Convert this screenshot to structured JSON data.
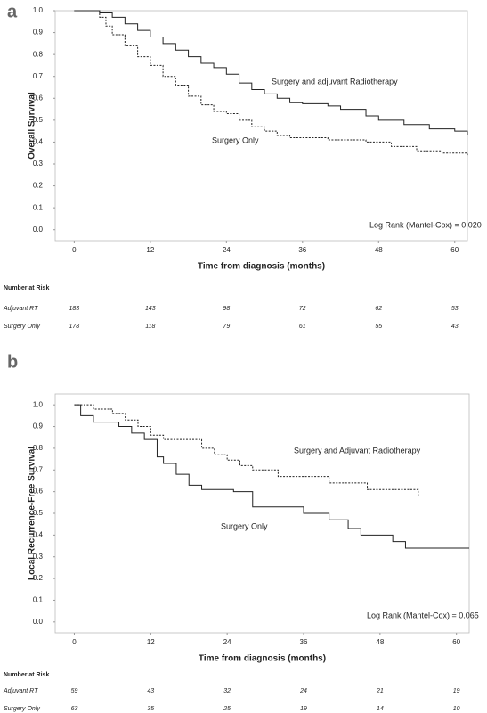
{
  "chart_data": [
    {
      "type": "line",
      "panel_label": "a",
      "ylabel": "Overall Survival",
      "xlabel": "Time from diagnosis (months)",
      "xlim": [
        -3,
        62
      ],
      "ylim": [
        -0.05,
        1.0
      ],
      "xticks": [
        0,
        12,
        24,
        36,
        48,
        60
      ],
      "yticks": [
        {
          "value": 0,
          "label": "0.0"
        },
        0.1,
        0.2,
        0.3,
        0.4,
        0.5,
        0.6,
        0.7,
        0.8,
        0.9,
        {
          "value": 1,
          "label": "1.0"
        }
      ],
      "series": [
        {
          "name": "Surgery and adjuvant Radiotherapy",
          "color": "#222",
          "line_style": "solid",
          "x": [
            0,
            2,
            4,
            6,
            8,
            10,
            12,
            14,
            16,
            18,
            20,
            22,
            24,
            26,
            28,
            30,
            32,
            34,
            36,
            40,
            42,
            46,
            48,
            52,
            56,
            60,
            62
          ],
          "values": [
            1,
            1,
            0.99,
            0.97,
            0.94,
            0.91,
            0.88,
            0.85,
            0.82,
            0.79,
            0.76,
            0.74,
            0.71,
            0.67,
            0.64,
            0.62,
            0.6,
            0.58,
            0.575,
            0.565,
            0.55,
            0.52,
            0.5,
            0.48,
            0.46,
            0.45,
            0.43
          ]
        },
        {
          "name": "Surgery Only",
          "color": "#222",
          "line_style": "dashed",
          "x": [
            0,
            2,
            4,
            5,
            6,
            8,
            10,
            12,
            14,
            16,
            18,
            20,
            22,
            24,
            26,
            28,
            30,
            32,
            34,
            40,
            46,
            50,
            54,
            58,
            62
          ],
          "values": [
            1,
            1,
            0.97,
            0.93,
            0.89,
            0.84,
            0.79,
            0.75,
            0.7,
            0.66,
            0.61,
            0.57,
            0.54,
            0.53,
            0.5,
            0.47,
            0.45,
            0.43,
            0.42,
            0.41,
            0.4,
            0.38,
            0.36,
            0.35,
            0.34
          ]
        }
      ],
      "annotations": [
        "Surgery and adjuvant Radiotherapy",
        "Surgery Only",
        "Log Rank (Mantel-Cox) = 0.020"
      ],
      "risk_table": {
        "title": "Number at Risk",
        "rows": [
          {
            "label": "Adjuvant RT",
            "values": [
              183,
              143,
              98,
              72,
              62,
              53
            ]
          },
          {
            "label": "Surgery Only",
            "values": [
              178,
              118,
              79,
              61,
              55,
              43
            ]
          }
        ]
      }
    },
    {
      "type": "line",
      "panel_label": "b",
      "ylabel": "Local Recurrence-Free Survival",
      "xlabel": "Time from diagnosis (months)",
      "xlim": [
        -3,
        62
      ],
      "ylim": [
        -0.05,
        1.05
      ],
      "xticks": [
        0,
        12,
        24,
        36,
        48,
        60
      ],
      "yticks": [
        {
          "value": 0,
          "label": "0.0"
        },
        0.1,
        0.2,
        0.3,
        0.4,
        0.5,
        0.6,
        0.7,
        0.8,
        0.9,
        {
          "value": 1,
          "label": "1.0"
        }
      ],
      "series": [
        {
          "name": "Surgery and Adjuvant Radiotherapy",
          "color": "#222",
          "line_style": "dashed",
          "x": [
            0,
            3,
            6,
            8,
            10,
            12,
            14,
            20,
            22,
            24,
            26,
            28,
            32,
            40,
            46,
            54,
            62
          ],
          "values": [
            1,
            0.98,
            0.96,
            0.93,
            0.9,
            0.86,
            0.84,
            0.8,
            0.77,
            0.745,
            0.72,
            0.7,
            0.67,
            0.64,
            0.61,
            0.58,
            0.58
          ]
        },
        {
          "name": "Surgery Only",
          "color": "#222",
          "line_style": "solid",
          "x": [
            0,
            1,
            3,
            7,
            9,
            11,
            13,
            14,
            16,
            18,
            20,
            25,
            28,
            36,
            40,
            43,
            45,
            50,
            52,
            62
          ],
          "values": [
            1,
            0.95,
            0.92,
            0.9,
            0.87,
            0.84,
            0.76,
            0.73,
            0.68,
            0.63,
            0.61,
            0.6,
            0.53,
            0.5,
            0.47,
            0.43,
            0.4,
            0.37,
            0.34,
            0.34
          ]
        }
      ],
      "annotations": [
        "Log Rank (Mantel-Cox) = 0.065"
      ],
      "risk_table": {
        "title": "Number at Risk",
        "rows": [
          {
            "label": "Adjuvant RT",
            "values": [
              59,
              43,
              32,
              24,
              21,
              19
            ]
          },
          {
            "label": "Surgery Only",
            "values": [
              63,
              35,
              25,
              19,
              14,
              10
            ]
          }
        ]
      }
    }
  ]
}
